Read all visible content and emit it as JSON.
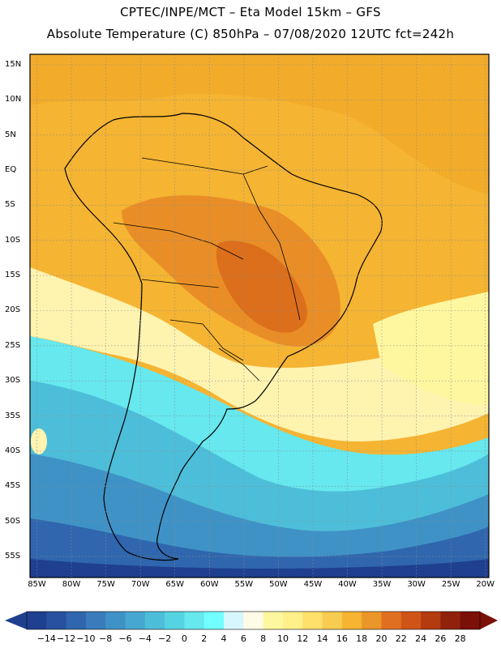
{
  "header": {
    "line1": "CPTEC/INPE/MCT –  Eta Model 15km – GFS",
    "line2": "Absolute Temperature (C) 850hPa – 07/08/2020 12UTC fct=242h"
  },
  "map": {
    "lat_labels": [
      "15N",
      "10N",
      "5N",
      "EQ",
      "5S",
      "10S",
      "15S",
      "20S",
      "25S",
      "30S",
      "35S",
      "40S",
      "45S",
      "50S",
      "55S"
    ],
    "lon_labels": [
      "85W",
      "80W",
      "75W",
      "70W",
      "65W",
      "60W",
      "55W",
      "50W",
      "45W",
      "40W",
      "35W",
      "30W",
      "25W",
      "20W"
    ],
    "extent": {
      "west": -86,
      "east": -19.5,
      "north": 16.5,
      "south": -58
    }
  },
  "colorbar": {
    "labels": [
      "-14",
      "-12",
      "-10",
      "-8",
      "-6",
      "-4",
      "-2",
      "0",
      "2",
      "4",
      "6",
      "8",
      "10",
      "12",
      "14",
      "16",
      "18",
      "20",
      "22",
      "24",
      "26",
      "28"
    ],
    "colors": [
      "#1f3f8f",
      "#28519f",
      "#2f66ad",
      "#3a7cbb",
      "#3f92c6",
      "#46a8d0",
      "#4dbed9",
      "#56d3e3",
      "#66e8ee",
      "#72ffff",
      "#d7f7ff",
      "#fffbe6",
      "#fff7a0",
      "#fff08a",
      "#ffe06a",
      "#f8cc50",
      "#f5b432",
      "#eb9628",
      "#e07020",
      "#d05418",
      "#b43a10",
      "#90220c",
      "#7a1008"
    ],
    "low_arrow_color": "#1f3f8f",
    "high_arrow_color": "#7a1008"
  }
}
